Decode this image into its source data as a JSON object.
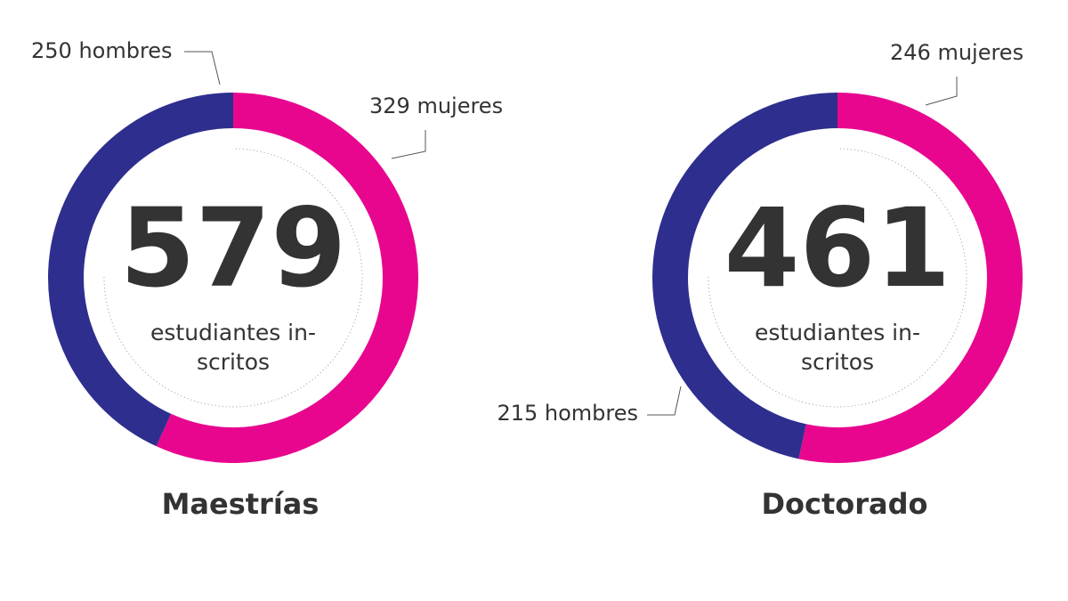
{
  "chart_data": [
    {
      "type": "donut",
      "title": "Maestrías",
      "total": 579,
      "center_text": [
        "estudiantes in-",
        "scritos"
      ],
      "values": [
        329,
        250
      ],
      "value_labels": [
        "329 mujeres",
        "250 hombres"
      ],
      "colors": [
        "#e8068f",
        "#2e2e8f"
      ]
    },
    {
      "type": "donut",
      "title": "Doctorado",
      "total": 461,
      "center_text": [
        "estudiantes in-",
        "scritos"
      ],
      "values": [
        246,
        215
      ],
      "value_labels": [
        "246 mujeres",
        "215 hombres"
      ],
      "colors": [
        "#e8068f",
        "#2e2e8f"
      ]
    }
  ]
}
